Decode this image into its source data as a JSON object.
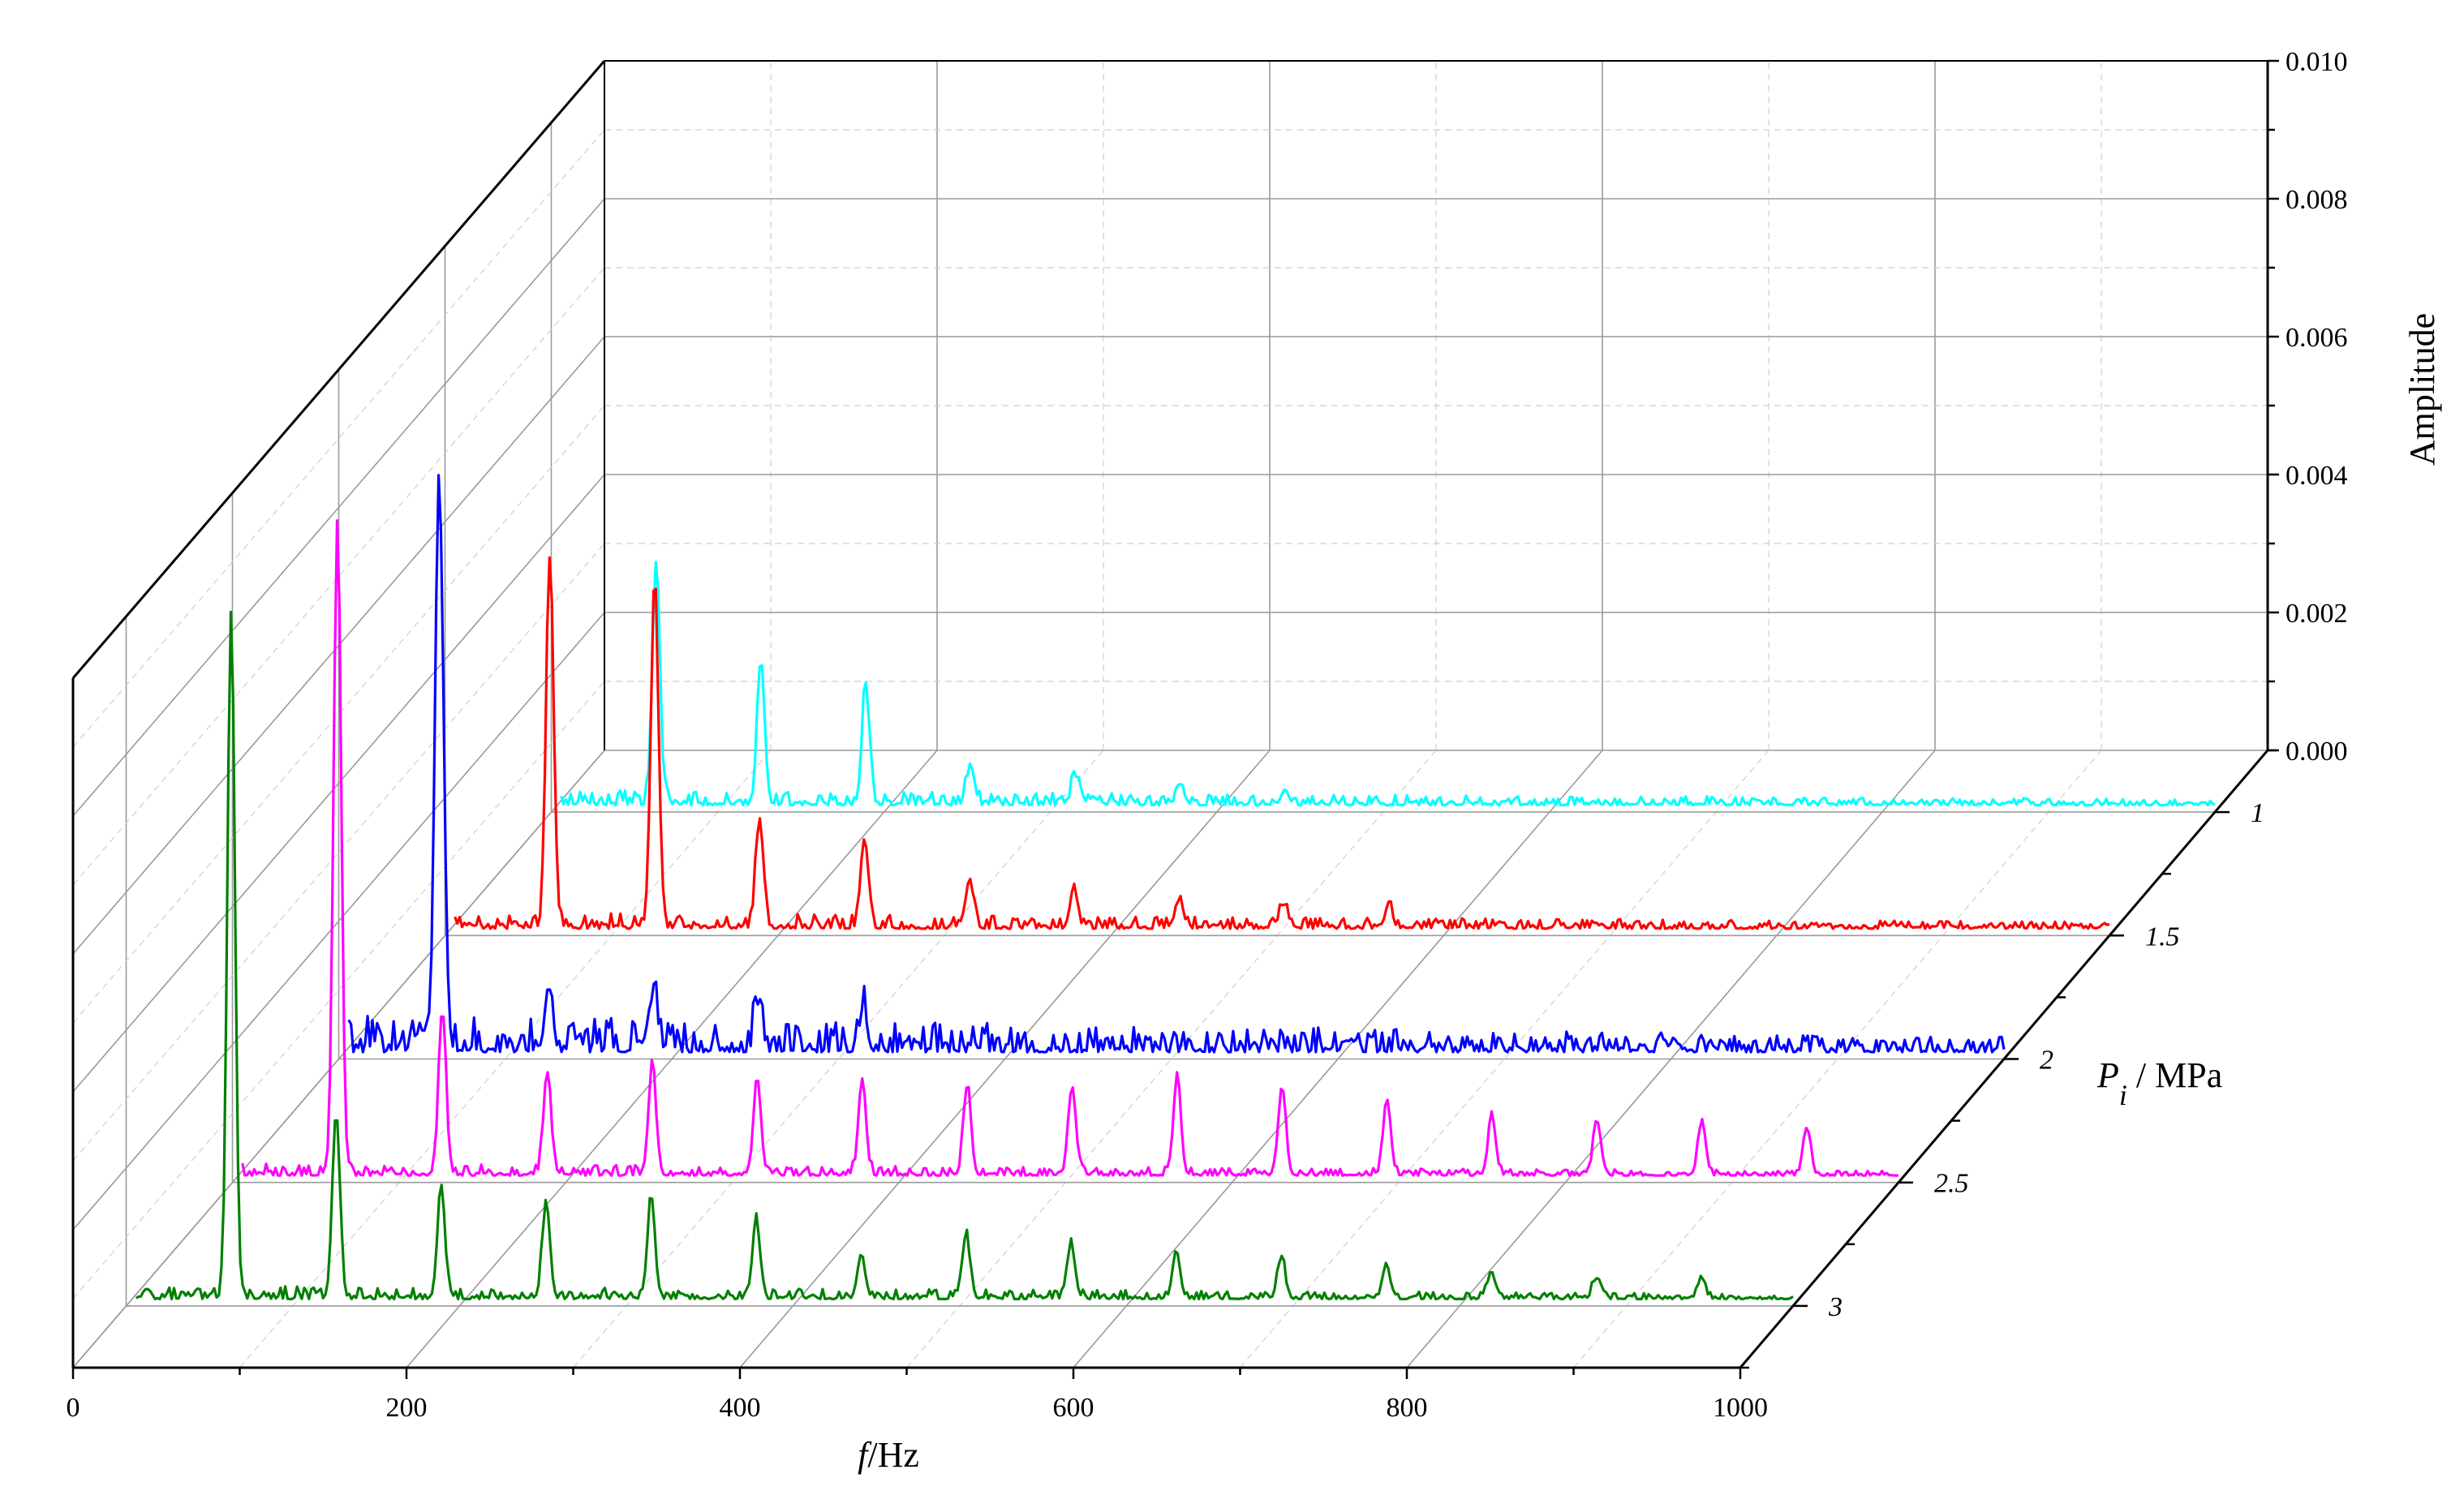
{
  "chart_data": {
    "type": "line",
    "subtype": "3d-waterfall",
    "title": "",
    "xlabel": {
      "italic": "f",
      "rest": "/Hz"
    },
    "ylabel": {
      "base": "P",
      "sub": "i",
      "rest": " / MPa"
    },
    "zlabel": "Amplitude",
    "x_range": [
      0,
      1000
    ],
    "x_ticks": [
      0,
      200,
      400,
      600,
      800,
      1000
    ],
    "x_tick_labels": [
      "0",
      "200",
      "400",
      "600",
      "800",
      "1000"
    ],
    "z_range": [
      0,
      0.01
    ],
    "z_ticks": [
      0,
      0.002,
      0.004,
      0.006,
      0.008,
      0.01
    ],
    "z_tick_labels": [
      "0.000",
      "0.002",
      "0.004",
      "0.006",
      "0.008",
      "0.010"
    ],
    "depth_values": [
      1,
      1.5,
      2,
      2.5,
      3
    ],
    "depth_labels": [
      "1",
      "1.5",
      "2",
      "2.5",
      "3"
    ],
    "grid": true,
    "legend": "none",
    "series": [
      {
        "depth": 1,
        "color": "#00ffff",
        "f0": 63,
        "base": 0.0001,
        "noise": 0.00022,
        "peaks": [
          [
            63,
            0.0035
          ],
          [
            126,
            0.0021
          ],
          [
            189,
            0.0017
          ],
          [
            252,
            0.00058
          ],
          [
            315,
            0.00042
          ],
          [
            378,
            0.0003
          ],
          [
            441,
            0.00022
          ]
        ]
      },
      {
        "depth": 1.5,
        "color": "#ff0000",
        "f0": 63,
        "base": 0.0001,
        "noise": 0.00024,
        "peaks": [
          [
            63,
            0.0054
          ],
          [
            126,
            0.005
          ],
          [
            189,
            0.0016
          ],
          [
            252,
            0.0013
          ],
          [
            315,
            0.0007
          ],
          [
            378,
            0.0005
          ],
          [
            441,
            0.0004
          ],
          [
            504,
            0.00035
          ],
          [
            567,
            0.0003
          ]
        ]
      },
      {
        "depth": 2,
        "color": "#0000ff",
        "f0": 63,
        "base": 0.0001,
        "noise": 0.00055,
        "peaks": [
          [
            60,
            0.0078
          ],
          [
            63,
            0.0014
          ],
          [
            126,
            0.0009
          ],
          [
            189,
            0.0008
          ],
          [
            252,
            0.0007
          ],
          [
            315,
            0.0006
          ]
        ]
      },
      {
        "depth": 2.5,
        "color": "#ff00ff",
        "f0": 63,
        "base": 0.0001,
        "noise": 0.00018,
        "peaks": [
          [
            63,
            0.0095
          ],
          [
            126,
            0.0023
          ],
          [
            189,
            0.0015
          ],
          [
            252,
            0.0016
          ],
          [
            315,
            0.0014
          ],
          [
            378,
            0.0014
          ],
          [
            441,
            0.0013
          ],
          [
            504,
            0.0013
          ],
          [
            567,
            0.0014
          ],
          [
            630,
            0.0013
          ],
          [
            693,
            0.0011
          ],
          [
            756,
            0.00085
          ],
          [
            819,
            0.0008
          ],
          [
            882,
            0.0008
          ],
          [
            945,
            0.0007
          ]
        ]
      },
      {
        "depth": 3,
        "color": "#008000",
        "f0": 63,
        "base": 0.0001,
        "noise": 0.0002,
        "peaks": [
          [
            0,
            0.0004
          ],
          [
            63,
            0.01
          ],
          [
            126,
            0.0027
          ],
          [
            189,
            0.0016
          ],
          [
            252,
            0.0014
          ],
          [
            315,
            0.0014
          ],
          [
            378,
            0.0011
          ],
          [
            441,
            0.00065
          ],
          [
            504,
            0.0009
          ],
          [
            567,
            0.00075
          ],
          [
            630,
            0.0007
          ],
          [
            693,
            0.0006
          ],
          [
            756,
            0.0005
          ],
          [
            819,
            0.0004
          ],
          [
            882,
            0.0003
          ],
          [
            945,
            0.0003
          ]
        ]
      }
    ]
  }
}
